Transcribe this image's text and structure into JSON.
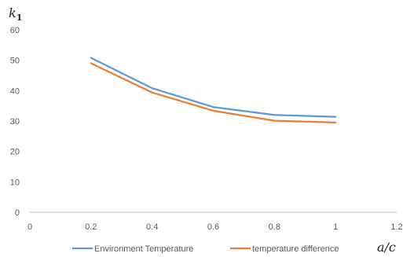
{
  "chart_data": {
    "type": "line",
    "xlabel": "a/c",
    "ylabel_main": "k",
    "ylabel_sub": "1",
    "xlim": [
      0,
      1.2
    ],
    "ylim": [
      0,
      60
    ],
    "xticks": [
      "0",
      "0.2",
      "0.4",
      "0.6",
      "0.8",
      "1",
      "1.2"
    ],
    "yticks": [
      "0",
      "10",
      "20",
      "30",
      "40",
      "50",
      "60"
    ],
    "grid": false,
    "legend_position": "bottom",
    "series": [
      {
        "name": "Environment Temperature",
        "color": "#5B9BD5",
        "x": [
          0.2,
          0.4,
          0.6,
          0.8,
          1.0
        ],
        "y": [
          50.8,
          40.8,
          34.6,
          32.0,
          31.4
        ]
      },
      {
        "name": "temperature difference",
        "color": "#ED7D31",
        "x": [
          0.2,
          0.4,
          0.6,
          0.8,
          1.0
        ],
        "y": [
          49.0,
          39.4,
          33.4,
          30.1,
          29.5
        ]
      }
    ]
  }
}
